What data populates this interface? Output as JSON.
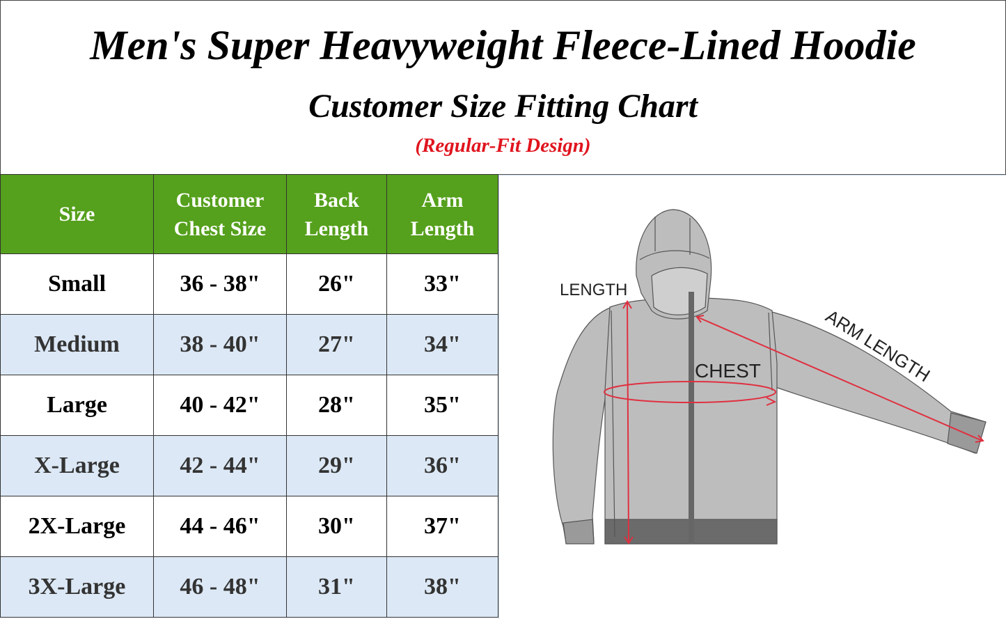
{
  "title": "Men's Super Heavyweight Fleece-Lined Hoodie",
  "subtitle": "Customer Size Fitting Chart",
  "note": "(Regular-Fit Design)",
  "colors": {
    "header_green": "#55a01c",
    "alt_row": "#dce8f5",
    "note_red": "#e0141e",
    "measure_red": "#e03040"
  },
  "table": {
    "headers": [
      "Size",
      "Customer Chest Size",
      "Back Length",
      "Arm Length"
    ],
    "rows": [
      [
        "Small",
        "36 - 38\"",
        "26\"",
        "33\""
      ],
      [
        "Medium",
        "38 - 40\"",
        "27\"",
        "34\""
      ],
      [
        "Large",
        "40 - 42\"",
        "28\"",
        "35\""
      ],
      [
        "X-Large",
        "42 - 44\"",
        "29\"",
        "36\""
      ],
      [
        "2X-Large",
        "44 - 46\"",
        "30\"",
        "37\""
      ],
      [
        "3X-Large",
        "46 - 48\"",
        "31\"",
        "38\""
      ]
    ]
  },
  "diagram": {
    "length_label": "LENGTH",
    "chest_label": "CHEST",
    "arm_label": "ARM LENGTH",
    "icon": "hoodie-illustration"
  }
}
